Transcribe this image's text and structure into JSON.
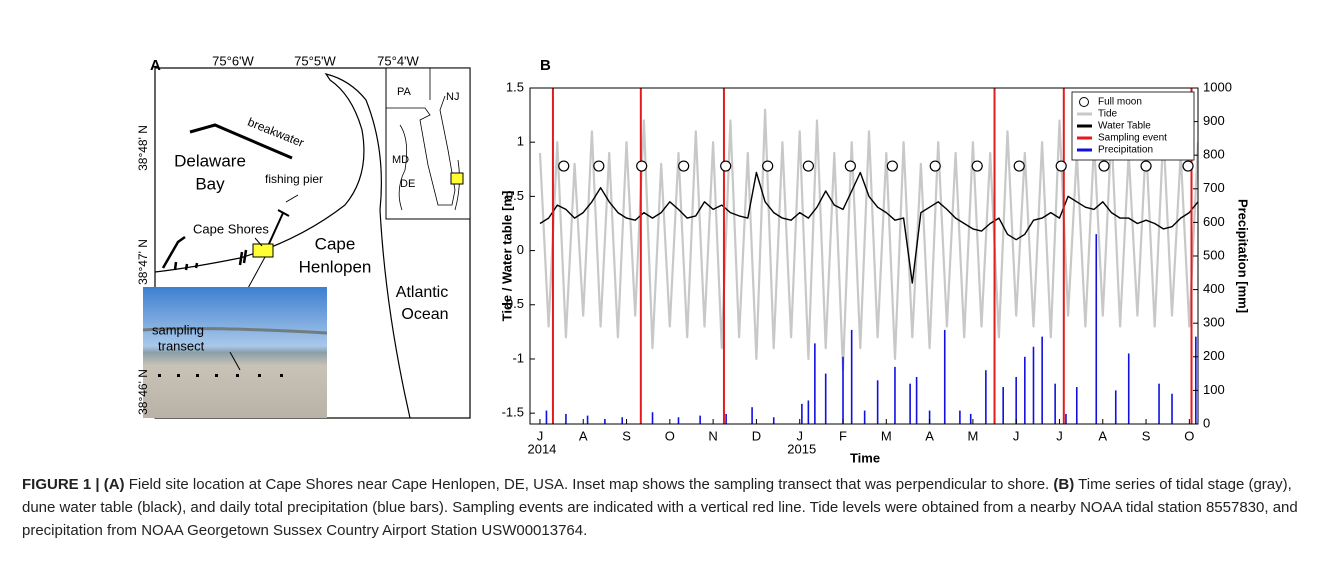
{
  "panel_a": {
    "label": "A",
    "lon_labels": [
      "75°6'W",
      "75°5'W",
      "75°4'W"
    ],
    "lat_labels": [
      "38°48' N",
      "38°47' N",
      "38°46' N"
    ],
    "map_labels": [
      "breakwater",
      "Delaware",
      "Bay",
      "fishing pier",
      "Cape Shores",
      "Cape",
      "Henlopen",
      "Atlantic",
      "Ocean",
      "sampling",
      "transect"
    ],
    "inset_labels": [
      "PA",
      "NJ",
      "MD",
      "DE"
    ]
  },
  "chart_data": {
    "type": "line",
    "panel_label": "B",
    "x_label": "Time",
    "y_label": "Tide / Water table [m]",
    "y2_label": "Precipitation [mm]",
    "xlim": [
      -0.23,
      15.2
    ],
    "xticks": [
      {
        "value": 0,
        "label": "J"
      },
      {
        "value": 1,
        "label": "A"
      },
      {
        "value": 2,
        "label": "S"
      },
      {
        "value": 3,
        "label": "O"
      },
      {
        "value": 4,
        "label": "N"
      },
      {
        "value": 5,
        "label": "D"
      },
      {
        "value": 6,
        "label": "J"
      },
      {
        "value": 7,
        "label": "F"
      },
      {
        "value": 8,
        "label": "M"
      },
      {
        "value": 9,
        "label": "A"
      },
      {
        "value": 10,
        "label": "M"
      },
      {
        "value": 11,
        "label": "J"
      },
      {
        "value": 12,
        "label": "J"
      },
      {
        "value": 13,
        "label": "A"
      },
      {
        "value": 14,
        "label": "S"
      },
      {
        "value": 15,
        "label": "O"
      }
    ],
    "year_labels": [
      {
        "value": 0,
        "label": "2014"
      },
      {
        "value": 6,
        "label": "2015"
      }
    ],
    "ylim": [
      -1.6,
      1.5
    ],
    "yticks": [
      -1.5,
      -1,
      -0.5,
      0,
      0.5,
      1,
      1.5
    ],
    "y2lim": [
      0,
      1000
    ],
    "y2ticks": [
      0,
      100,
      200,
      300,
      400,
      500,
      600,
      700,
      800,
      900,
      1000
    ],
    "legend": "upper right",
    "series": [
      {
        "name": "Full moon",
        "type": "scatter",
        "color": "#000000",
        "x": [
          0.55,
          1.36,
          2.35,
          3.32,
          4.29,
          5.26,
          6.2,
          7.17,
          8.14,
          9.13,
          10.1,
          11.07,
          12.04,
          13.03,
          14.0,
          14.97
        ],
        "values": [
          0.78,
          0.78,
          0.78,
          0.78,
          0.78,
          0.78,
          0.78,
          0.78,
          0.78,
          0.78,
          0.78,
          0.78,
          0.78,
          0.78,
          0.78,
          0.78
        ]
      },
      {
        "name": "Tide",
        "type": "line",
        "color": "#c8c8c8",
        "x": [
          0,
          0.2,
          0.4,
          0.6,
          0.8,
          1,
          1.2,
          1.4,
          1.6,
          1.8,
          2,
          2.2,
          2.4,
          2.6,
          2.8,
          3,
          3.2,
          3.4,
          3.6,
          3.8,
          4,
          4.2,
          4.4,
          4.6,
          4.8,
          5,
          5.2,
          5.4,
          5.6,
          5.8,
          6,
          6.2,
          6.4,
          6.6,
          6.8,
          7,
          7.2,
          7.4,
          7.6,
          7.8,
          8,
          8.2,
          8.4,
          8.6,
          8.8,
          9,
          9.2,
          9.4,
          9.6,
          9.8,
          10,
          10.2,
          10.4,
          10.6,
          10.8,
          11,
          11.2,
          11.4,
          11.6,
          11.8,
          12,
          12.2,
          12.4,
          12.6,
          12.8,
          13,
          13.2,
          13.4,
          13.6,
          13.8,
          14,
          14.2,
          14.4,
          14.6,
          14.8,
          15,
          15.2
        ],
        "values": [
          0.9,
          -0.7,
          1.0,
          -0.8,
          0.8,
          -0.6,
          1.1,
          -0.7,
          0.9,
          -0.8,
          1.0,
          -0.6,
          1.2,
          -0.9,
          0.8,
          -0.7,
          0.9,
          -0.8,
          1.1,
          -0.7,
          1.0,
          -0.9,
          1.2,
          -0.8,
          0.9,
          -1.0,
          1.3,
          -0.9,
          1.0,
          -0.8,
          1.1,
          -1.0,
          1.2,
          -0.9,
          0.9,
          -1.1,
          1.0,
          -0.9,
          1.1,
          -0.8,
          0.9,
          -1.0,
          1.0,
          -0.8,
          0.8,
          -0.9,
          1.0,
          -0.7,
          0.9,
          -0.8,
          1.0,
          -0.7,
          0.9,
          -0.8,
          1.1,
          -0.6,
          0.9,
          -0.7,
          1.0,
          -0.8,
          1.2,
          -0.6,
          0.9,
          -0.7,
          1.0,
          -0.6,
          1.1,
          -0.7,
          0.9,
          -0.6,
          1.0,
          -0.7,
          1.1,
          -0.6,
          0.9,
          -0.7,
          1.0
        ]
      },
      {
        "name": "Water Table",
        "type": "line",
        "color": "#000000",
        "x": [
          0,
          0.2,
          0.4,
          0.6,
          0.8,
          1,
          1.2,
          1.4,
          1.6,
          1.8,
          2,
          2.2,
          2.4,
          2.6,
          2.8,
          3,
          3.2,
          3.4,
          3.6,
          3.8,
          4,
          4.2,
          4.4,
          4.6,
          4.8,
          5,
          5.2,
          5.4,
          5.6,
          5.8,
          6,
          6.2,
          6.4,
          6.6,
          6.8,
          7,
          7.2,
          7.4,
          7.6,
          7.8,
          8,
          8.2,
          8.4,
          8.6,
          8.8,
          9,
          9.2,
          9.4,
          9.6,
          9.8,
          10,
          10.2,
          10.4,
          10.6,
          10.8,
          11,
          11.2,
          11.4,
          11.6,
          11.8,
          12,
          12.2,
          12.4,
          12.6,
          12.8,
          13,
          13.2,
          13.4,
          13.6,
          13.8,
          14,
          14.2,
          14.4,
          14.6,
          14.8,
          15,
          15.2
        ],
        "values": [
          0.25,
          0.3,
          0.42,
          0.38,
          0.3,
          0.35,
          0.45,
          0.58,
          0.45,
          0.35,
          0.3,
          0.28,
          0.35,
          0.3,
          0.35,
          0.45,
          0.38,
          0.3,
          0.32,
          0.45,
          0.38,
          0.42,
          0.35,
          0.32,
          0.3,
          0.72,
          0.45,
          0.35,
          0.3,
          0.28,
          0.35,
          0.3,
          0.4,
          0.55,
          0.42,
          0.38,
          0.55,
          0.72,
          0.5,
          0.4,
          0.35,
          0.28,
          0.3,
          -0.3,
          0.35,
          0.4,
          0.45,
          0.38,
          0.3,
          0.25,
          0.2,
          0.18,
          0.25,
          0.3,
          0.15,
          0.1,
          0.15,
          0.28,
          0.3,
          0.35,
          0.3,
          0.5,
          0.45,
          0.4,
          0.38,
          0.45,
          0.35,
          0.3,
          0.3,
          0.25,
          0.28,
          0.25,
          0.2,
          0.22,
          0.3,
          0.35,
          0.45
        ]
      },
      {
        "name": "Sampling event",
        "type": "vline",
        "color": "#e41a1c",
        "x": [
          0.3,
          2.33,
          4.25,
          10.5,
          12.1,
          15.05
        ]
      },
      {
        "name": "Precipitation",
        "type": "bar",
        "axis": "y2",
        "color": "#1010e0",
        "x": [
          0.15,
          0.6,
          1.1,
          1.5,
          1.9,
          2.6,
          3.2,
          3.7,
          4.3,
          4.9,
          5.4,
          6.05,
          6.2,
          6.35,
          6.6,
          7.0,
          7.2,
          7.5,
          7.8,
          8.2,
          8.55,
          8.7,
          9.0,
          9.35,
          9.7,
          9.95,
          10.3,
          10.7,
          11.0,
          11.2,
          11.4,
          11.6,
          11.9,
          12.15,
          12.4,
          12.85,
          13.3,
          13.6,
          14.3,
          14.6,
          15.15
        ],
        "values": [
          40,
          30,
          25,
          15,
          20,
          35,
          20,
          25,
          30,
          50,
          20,
          60,
          70,
          240,
          150,
          200,
          280,
          40,
          130,
          170,
          120,
          140,
          40,
          280,
          40,
          30,
          160,
          110,
          140,
          200,
          230,
          260,
          120,
          30,
          110,
          565,
          100,
          210,
          120,
          90,
          260
        ]
      }
    ]
  },
  "caption": {
    "figure_label": "FIGURE 1 |",
    "a_label": "(A)",
    "a_text": "Field site location at Cape Shores near Cape Henlopen, DE, USA. Inset map shows the sampling transect that was perpendicular to shore.",
    "b_label": "(B)",
    "b_text": "Time series of tidal stage (gray), dune water table (black), and daily total precipitation (blue bars). Sampling events are indicated with a vertical red line. Tide levels were obtained from a nearby NOAA tidal station 8557830, and precipitation from NOAA Georgetown Sussex Country Airport Station USW00013764."
  }
}
